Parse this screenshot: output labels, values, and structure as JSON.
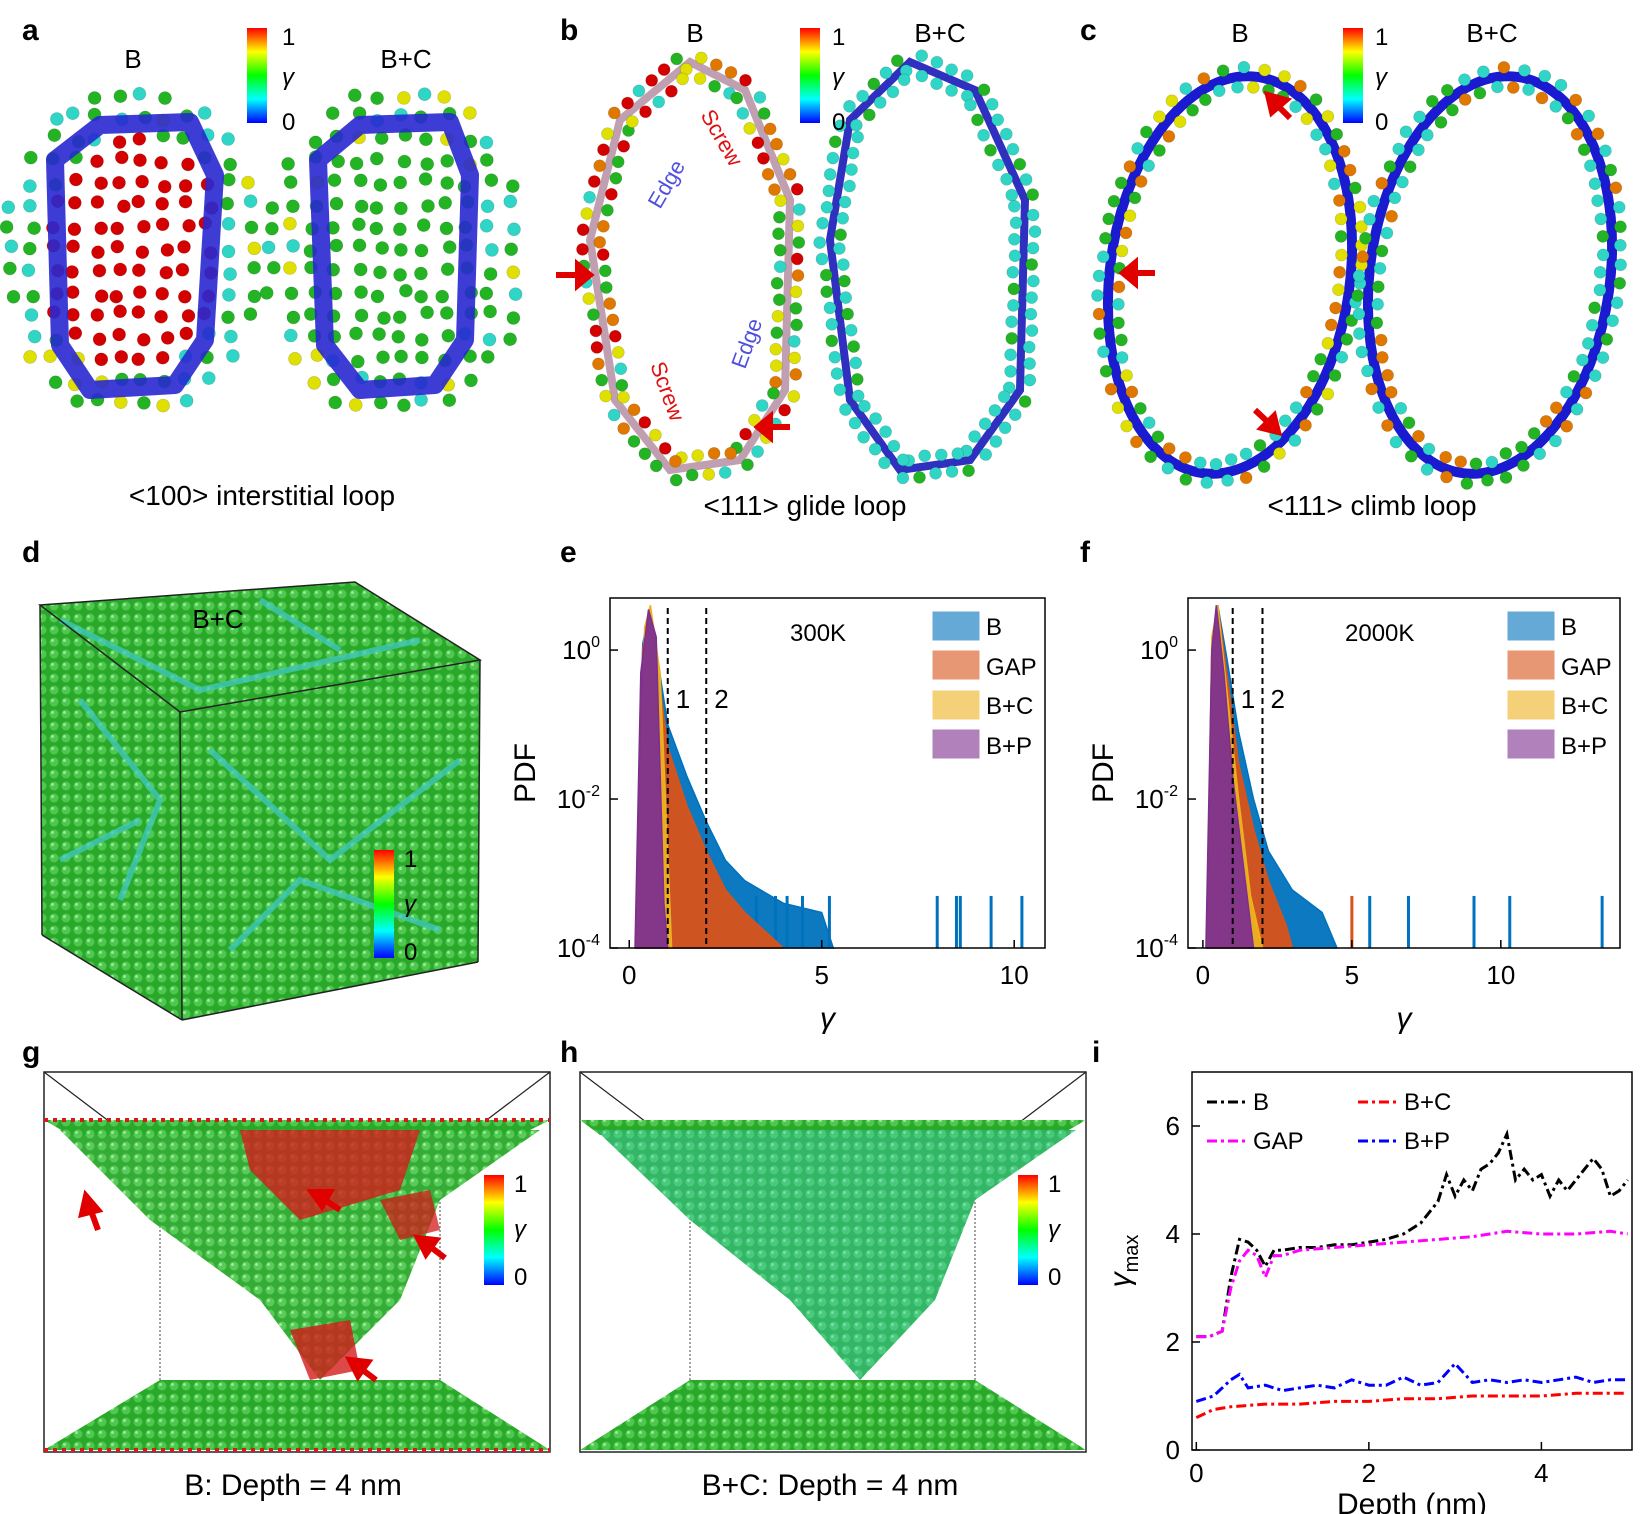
{
  "panel_letters": [
    "a",
    "b",
    "c",
    "d",
    "e",
    "f",
    "g",
    "h",
    "i"
  ],
  "panel_a": {
    "label_left": "B",
    "label_right": "B+C",
    "caption": "<100> interstitial loop"
  },
  "panel_b": {
    "label_left": "B",
    "label_right": "B+C",
    "caption": "<111> glide loop",
    "annot_edge": "Edge",
    "annot_screw": "Screw"
  },
  "panel_c": {
    "label_left": "B",
    "label_right": "B+C",
    "caption": "<111> climb loop"
  },
  "panel_d": {
    "label": "B+C"
  },
  "panel_g": {
    "caption": "B: Depth = 4 nm"
  },
  "panel_h": {
    "caption": "B+C: Depth = 4 nm"
  },
  "colorbar": {
    "max": "1",
    "min": "0",
    "symbol": "γ",
    "stops": [
      "#0000ff",
      "#00ffff",
      "#00ff00",
      "#ffff00",
      "#ff0000"
    ]
  },
  "atom_colors": {
    "red": "#d40000",
    "green": "#22b422",
    "cyan": "#2fd6c6",
    "yellow": "#e0e000",
    "orange": "#e07800",
    "blue_tube": "#2020d0"
  },
  "chart_data": [
    {
      "panel": "e",
      "type": "area",
      "temperature": "300K",
      "xlabel": "γ",
      "ylabel": "PDF",
      "xlim": [
        -0.5,
        10.8
      ],
      "ylim": [
        0.0001,
        5
      ],
      "yscale": "log",
      "xticks": [
        "0",
        "5",
        "10"
      ],
      "yticks": [
        "10^0",
        "10^-2",
        "10^-4"
      ],
      "vlines": [
        {
          "x": 1,
          "label": "1"
        },
        {
          "x": 2,
          "label": "2"
        }
      ],
      "legend": [
        "B",
        "GAP",
        "B+C",
        "B+P"
      ],
      "legend_position": "top-right",
      "series": [
        {
          "name": "B",
          "color": "#0072bd",
          "points": [
            [
              0.2,
              0.0003
            ],
            [
              0.35,
              1.2
            ],
            [
              0.5,
              3
            ],
            [
              0.7,
              1
            ],
            [
              1.0,
              0.1
            ],
            [
              1.5,
              0.02
            ],
            [
              2.0,
              0.005
            ],
            [
              2.5,
              0.0015
            ],
            [
              3,
              0.0008
            ],
            [
              4,
              0.0004
            ],
            [
              5,
              0.0003
            ],
            [
              5.3,
              0.0001
            ]
          ],
          "spikes": [
            3.3,
            3.8,
            4.1,
            4.5,
            5.2,
            8.0,
            8.5,
            8.6,
            9.4,
            10.2
          ]
        },
        {
          "name": "GAP",
          "color": "#d95319",
          "points": [
            [
              0.2,
              0.0003
            ],
            [
              0.35,
              1.0
            ],
            [
              0.5,
              3
            ],
            [
              0.7,
              0.8
            ],
            [
              1.0,
              0.05
            ],
            [
              1.5,
              0.008
            ],
            [
              2.0,
              0.002
            ],
            [
              2.5,
              0.0006
            ],
            [
              3,
              0.0003
            ],
            [
              4,
              0.0001
            ]
          ]
        },
        {
          "name": "B+C",
          "color": "#edb120",
          "points": [
            [
              0.2,
              0.0003
            ],
            [
              0.4,
              2
            ],
            [
              0.55,
              4
            ],
            [
              0.8,
              0.5
            ],
            [
              1.0,
              0.002
            ],
            [
              1.1,
              0.0001
            ]
          ]
        },
        {
          "name": "B+P",
          "color": "#7e2f8e",
          "points": [
            [
              0.15,
              0.0001
            ],
            [
              0.3,
              0.5
            ],
            [
              0.5,
              3.5
            ],
            [
              0.7,
              1.5
            ],
            [
              0.9,
              0.0004
            ],
            [
              1.0,
              0.0001
            ]
          ]
        }
      ]
    },
    {
      "panel": "f",
      "type": "area",
      "temperature": "2000K",
      "xlabel": "γ",
      "ylabel": "PDF",
      "xlim": [
        -0.5,
        14
      ],
      "ylim": [
        0.0001,
        5
      ],
      "yscale": "log",
      "xticks": [
        "0",
        "5",
        "10"
      ],
      "yticks": [
        "10^0",
        "10^-2",
        "10^-4"
      ],
      "vlines": [
        {
          "x": 1,
          "label": "1"
        },
        {
          "x": 2,
          "label": "2"
        }
      ],
      "legend": [
        "B",
        "GAP",
        "B+C",
        "B+P"
      ],
      "legend_position": "top-right",
      "series": [
        {
          "name": "B",
          "color": "#0072bd",
          "points": [
            [
              0.15,
              0.0003
            ],
            [
              0.3,
              1
            ],
            [
              0.5,
              4
            ],
            [
              0.8,
              0.8
            ],
            [
              1.2,
              0.08
            ],
            [
              1.7,
              0.01
            ],
            [
              2.2,
              0.002
            ],
            [
              3,
              0.0006
            ],
            [
              4,
              0.0003
            ],
            [
              4.5,
              0.0001
            ]
          ],
          "spikes": [
            5.6,
            6.9,
            9.1,
            10.3,
            13.4
          ]
        },
        {
          "name": "GAP",
          "color": "#d95319",
          "points": [
            [
              0.15,
              0.0003
            ],
            [
              0.3,
              1
            ],
            [
              0.5,
              4
            ],
            [
              0.8,
              0.5
            ],
            [
              1.2,
              0.03
            ],
            [
              1.7,
              0.004
            ],
            [
              2.2,
              0.0008
            ],
            [
              2.8,
              0.0002
            ],
            [
              3,
              0.0001
            ]
          ],
          "spikes": [
            5.0
          ]
        },
        {
          "name": "B+C",
          "color": "#edb120",
          "points": [
            [
              0.15,
              0.0003
            ],
            [
              0.3,
              1.5
            ],
            [
              0.5,
              4
            ],
            [
              0.8,
              0.3
            ],
            [
              1.2,
              0.01
            ],
            [
              1.6,
              0.0005
            ],
            [
              2.0,
              0.0001
            ]
          ]
        },
        {
          "name": "B+P",
          "color": "#7e2f8e",
          "points": [
            [
              0.1,
              0.0001
            ],
            [
              0.3,
              1
            ],
            [
              0.45,
              4
            ],
            [
              0.7,
              0.5
            ],
            [
              1.0,
              0.02
            ],
            [
              1.3,
              0.002
            ],
            [
              1.7,
              0.0001
            ]
          ]
        }
      ]
    },
    {
      "panel": "i",
      "type": "line",
      "xlabel": "Depth (nm)",
      "ylabel": "γ",
      "ylabel_sub": "max",
      "xlim": [
        -0.05,
        5.05
      ],
      "ylim": [
        0,
        7
      ],
      "xticks": [
        0,
        2,
        4
      ],
      "yticks": [
        0,
        2,
        4,
        6
      ],
      "legend_position": "top",
      "series": [
        {
          "name": "B",
          "color": "#000000",
          "points": [
            [
              0,
              2.1
            ],
            [
              0.15,
              2.1
            ],
            [
              0.3,
              2.2
            ],
            [
              0.4,
              3.2
            ],
            [
              0.5,
              3.9
            ],
            [
              0.6,
              3.85
            ],
            [
              0.7,
              3.7
            ],
            [
              0.8,
              3.4
            ],
            [
              0.9,
              3.7
            ],
            [
              1.0,
              3.7
            ],
            [
              1.2,
              3.75
            ],
            [
              1.4,
              3.75
            ],
            [
              1.6,
              3.8
            ],
            [
              1.8,
              3.8
            ],
            [
              2.0,
              3.85
            ],
            [
              2.2,
              3.9
            ],
            [
              2.4,
              4.0
            ],
            [
              2.6,
              4.2
            ],
            [
              2.8,
              4.6
            ],
            [
              2.9,
              5.1
            ],
            [
              3.0,
              4.7
            ],
            [
              3.1,
              5.0
            ],
            [
              3.2,
              4.8
            ],
            [
              3.3,
              5.2
            ],
            [
              3.4,
              5.3
            ],
            [
              3.5,
              5.5
            ],
            [
              3.6,
              5.85
            ],
            [
              3.7,
              5.0
            ],
            [
              3.8,
              5.2
            ],
            [
              3.9,
              5.0
            ],
            [
              4.0,
              5.1
            ],
            [
              4.1,
              4.7
            ],
            [
              4.2,
              5.0
            ],
            [
              4.3,
              4.8
            ],
            [
              4.5,
              5.2
            ],
            [
              4.6,
              5.4
            ],
            [
              4.7,
              5.2
            ],
            [
              4.8,
              4.7
            ],
            [
              4.9,
              4.8
            ],
            [
              5.0,
              5.0
            ]
          ]
        },
        {
          "name": "B+C",
          "color": "#ff0000",
          "points": [
            [
              0,
              0.6
            ],
            [
              0.2,
              0.75
            ],
            [
              0.4,
              0.8
            ],
            [
              0.8,
              0.85
            ],
            [
              1.2,
              0.85
            ],
            [
              1.6,
              0.9
            ],
            [
              2.0,
              0.9
            ],
            [
              2.4,
              0.95
            ],
            [
              2.8,
              0.95
            ],
            [
              3.2,
              1.0
            ],
            [
              3.6,
              1.0
            ],
            [
              4.0,
              1.0
            ],
            [
              4.4,
              1.05
            ],
            [
              4.8,
              1.05
            ],
            [
              5.0,
              1.05
            ]
          ]
        },
        {
          "name": "GAP",
          "color": "#ff00ff",
          "points": [
            [
              0,
              2.1
            ],
            [
              0.15,
              2.1
            ],
            [
              0.3,
              2.2
            ],
            [
              0.4,
              3.0
            ],
            [
              0.5,
              3.5
            ],
            [
              0.6,
              3.7
            ],
            [
              0.7,
              3.6
            ],
            [
              0.8,
              3.2
            ],
            [
              0.9,
              3.6
            ],
            [
              1.0,
              3.6
            ],
            [
              1.2,
              3.7
            ],
            [
              1.6,
              3.75
            ],
            [
              2.0,
              3.8
            ],
            [
              2.4,
              3.85
            ],
            [
              2.8,
              3.9
            ],
            [
              3.2,
              3.95
            ],
            [
              3.6,
              4.05
            ],
            [
              4.0,
              4.0
            ],
            [
              4.4,
              4.0
            ],
            [
              4.8,
              4.05
            ],
            [
              5.0,
              4.0
            ]
          ]
        },
        {
          "name": "B+P",
          "color": "#0000ff",
          "points": [
            [
              0,
              0.9
            ],
            [
              0.2,
              1.0
            ],
            [
              0.4,
              1.3
            ],
            [
              0.5,
              1.4
            ],
            [
              0.6,
              1.15
            ],
            [
              0.8,
              1.2
            ],
            [
              1.0,
              1.1
            ],
            [
              1.2,
              1.15
            ],
            [
              1.4,
              1.2
            ],
            [
              1.6,
              1.15
            ],
            [
              1.8,
              1.3
            ],
            [
              2.0,
              1.2
            ],
            [
              2.2,
              1.2
            ],
            [
              2.4,
              1.35
            ],
            [
              2.6,
              1.2
            ],
            [
              2.8,
              1.25
            ],
            [
              3.0,
              1.6
            ],
            [
              3.2,
              1.25
            ],
            [
              3.4,
              1.3
            ],
            [
              3.6,
              1.25
            ],
            [
              3.8,
              1.3
            ],
            [
              4.0,
              1.25
            ],
            [
              4.2,
              1.3
            ],
            [
              4.4,
              1.35
            ],
            [
              4.6,
              1.25
            ],
            [
              4.8,
              1.3
            ],
            [
              5.0,
              1.3
            ]
          ]
        }
      ]
    }
  ]
}
